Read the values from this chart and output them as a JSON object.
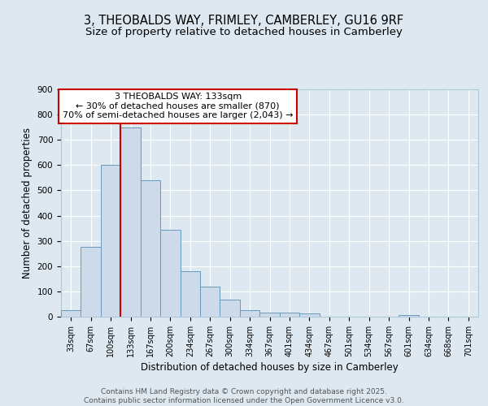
{
  "title1": "3, THEOBALDS WAY, FRIMLEY, CAMBERLEY, GU16 9RF",
  "title2": "Size of property relative to detached houses in Camberley",
  "xlabel": "Distribution of detached houses by size in Camberley",
  "ylabel": "Number of detached properties",
  "categories": [
    "33sqm",
    "67sqm",
    "100sqm",
    "133sqm",
    "167sqm",
    "200sqm",
    "234sqm",
    "267sqm",
    "300sqm",
    "334sqm",
    "367sqm",
    "401sqm",
    "434sqm",
    "467sqm",
    "501sqm",
    "534sqm",
    "567sqm",
    "601sqm",
    "634sqm",
    "668sqm",
    "701sqm"
  ],
  "bar_values": [
    25,
    275,
    600,
    750,
    540,
    345,
    180,
    118,
    68,
    25,
    15,
    15,
    13,
    0,
    0,
    0,
    0,
    5,
    0,
    0,
    0
  ],
  "bar_color": "#ccdaea",
  "bar_edge_color": "#6699bb",
  "vline_color": "#cc0000",
  "vline_index": 3,
  "annotation_line1": "3 THEOBALDS WAY: 133sqm",
  "annotation_line2": "← 30% of detached houses are smaller (870)",
  "annotation_line3": "70% of semi-detached houses are larger (2,043) →",
  "annotation_box_facecolor": "#ffffff",
  "annotation_box_edgecolor": "#cc0000",
  "ylim": [
    0,
    900
  ],
  "yticks": [
    0,
    100,
    200,
    300,
    400,
    500,
    600,
    700,
    800,
    900
  ],
  "bg_color": "#dde8f0",
  "plot_bg_color": "#dde8f0",
  "grid_color": "#ffffff",
  "footer_line1": "Contains HM Land Registry data © Crown copyright and database right 2025.",
  "footer_line2": "Contains public sector information licensed under the Open Government Licence v3.0.",
  "title1_fontsize": 10.5,
  "title2_fontsize": 9.5,
  "tick_fontsize": 7,
  "label_fontsize": 8.5,
  "annotation_fontsize": 8,
  "footer_fontsize": 6.5
}
